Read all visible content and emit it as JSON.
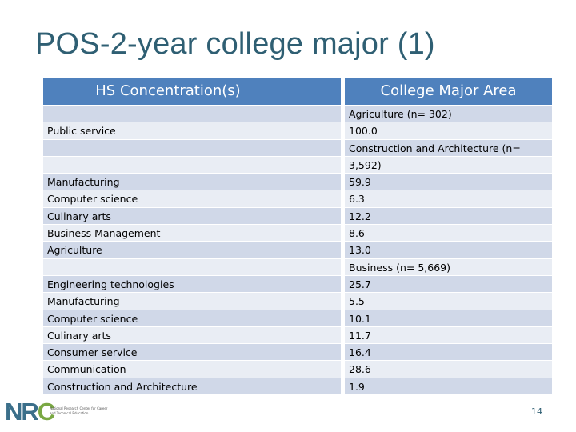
{
  "title": "POS-2-year college major (1)",
  "table": {
    "left_header": "HS Concentration(s)",
    "right_header": "College Major Area",
    "left_rows": [
      "",
      "Public service",
      "",
      "",
      "Manufacturing",
      "Computer science",
      "Culinary arts",
      "Business Management",
      "Agriculture",
      "",
      "Engineering technologies",
      "Manufacturing",
      "Computer science",
      "Culinary arts",
      "Consumer service",
      "Communication",
      "Construction and Architecture"
    ],
    "right_rows": [
      "Agriculture (n= 302)",
      "100.0",
      "Construction and Architecture (n=",
      "3,592)",
      "59.9",
      "6.3",
      "12.2",
      "8.6",
      "13.0",
      "Business (n= 5,669)",
      "25.7",
      "5.5",
      "10.1",
      "11.7",
      "16.4",
      "28.6",
      "1.9"
    ]
  },
  "logo": {
    "letters_main": "NR",
    "letters_accent": "C",
    "subtitle": "National Research Center for Career and Technical Education"
  },
  "page_number": "14",
  "colors": {
    "title": "#2f5f73",
    "header": "#4f81bd",
    "row_odd": "#d0d8e8",
    "row_even": "#e9edf4"
  }
}
